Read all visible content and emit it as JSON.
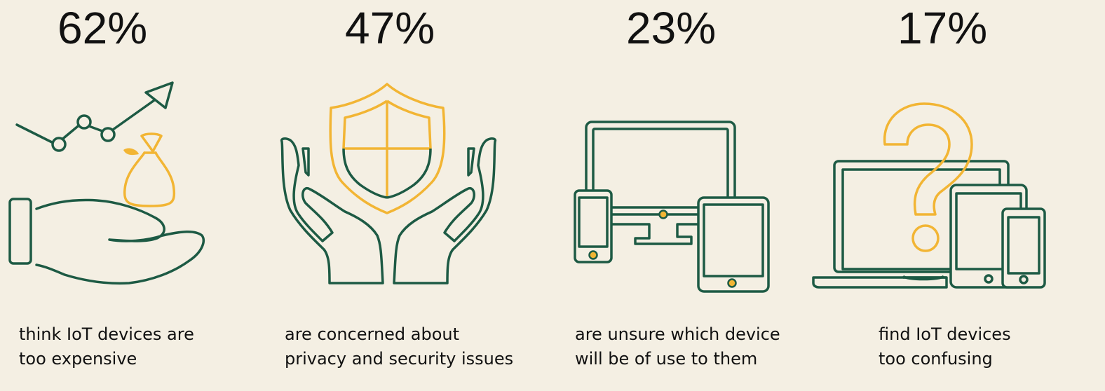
{
  "colors": {
    "background": "#f4efe3",
    "green": "#1d5a44",
    "yellow": "#f2b534",
    "text": "#111111"
  },
  "stats": [
    {
      "percent": "62%",
      "caption_line1": "think IoT devices are",
      "caption_line2": "too expensive",
      "icon": "hand-money-bag-chart-icon"
    },
    {
      "percent": "47%",
      "caption_line1": "are concerned about",
      "caption_line2": "privacy and security issues",
      "icon": "hands-shield-icon"
    },
    {
      "percent": "23%",
      "caption_line1": "are unsure which device",
      "caption_line2": "will be of use to them",
      "icon": "multi-device-icon"
    },
    {
      "percent": "17%",
      "caption_line1": "find IoT devices",
      "caption_line2": "too confusing",
      "icon": "devices-question-icon"
    }
  ]
}
